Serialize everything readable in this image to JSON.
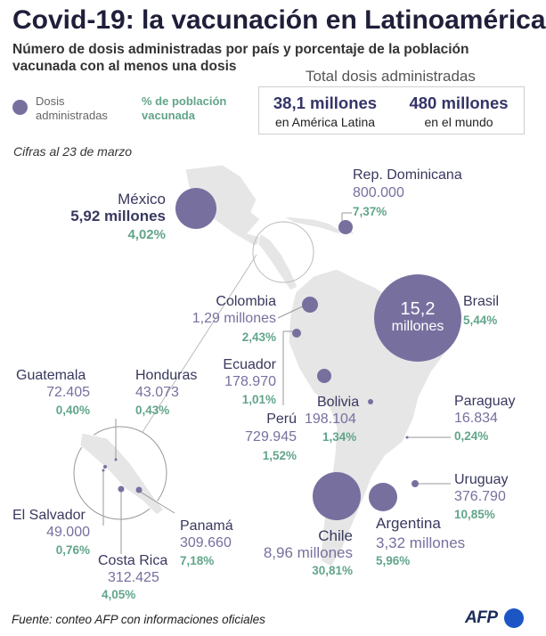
{
  "header": {
    "title": "Covid-19: la vacunación en Latinoamérica",
    "subtitle": "Número de dosis administradas por país y porcentaje de la población vacunada con al menos una dosis"
  },
  "legend": {
    "doses_label": "Dosis\nadministradas",
    "pct_label": "% de población\nvacunada"
  },
  "totals": {
    "title": "Total dosis administradas",
    "latam_value": "38,1 millones",
    "latam_label": "en América Latina",
    "world_value": "480 millones",
    "world_label": "en el mundo"
  },
  "date_note": "Cifras al 23 de marzo",
  "countries": {
    "mexico": {
      "name": "México",
      "doses": "5,92 millones",
      "pct": "4,02%",
      "dose_value": 5920000,
      "pct_value": 4.02
    },
    "rep_dominicana": {
      "name": "Rep. Dominicana",
      "doses": "800.000",
      "pct": "7,37%",
      "dose_value": 800000,
      "pct_value": 7.37
    },
    "colombia": {
      "name": "Colombia",
      "doses": "1,29 millones",
      "pct": "2,43%",
      "dose_value": 1290000,
      "pct_value": 2.43
    },
    "brasil": {
      "name": "Brasil",
      "doses_number": "15,2",
      "doses_unit": "millones",
      "pct": "5,44%",
      "dose_value": 15200000,
      "pct_value": 5.44
    },
    "ecuador": {
      "name": "Ecuador",
      "doses": "178.970",
      "pct": "1,01%",
      "dose_value": 178970,
      "pct_value": 1.01
    },
    "guatemala": {
      "name": "Guatemala",
      "doses": "72.405",
      "pct": "0,40%",
      "dose_value": 72405,
      "pct_value": 0.4
    },
    "honduras": {
      "name": "Honduras",
      "doses": "43.073",
      "pct": "0,43%",
      "dose_value": 43073,
      "pct_value": 0.43
    },
    "bolivia": {
      "name": "Bolivia",
      "doses": "198.104",
      "pct": "1,34%",
      "dose_value": 198104,
      "pct_value": 1.34
    },
    "paraguay": {
      "name": "Paraguay",
      "doses": "16.834",
      "pct": "0,24%",
      "dose_value": 16834,
      "pct_value": 0.24
    },
    "peru": {
      "name": "Perú",
      "doses": "729.945",
      "pct": "1,52%",
      "dose_value": 729945,
      "pct_value": 1.52
    },
    "uruguay": {
      "name": "Uruguay",
      "doses": "376.790",
      "pct": "10,85%",
      "dose_value": 376790,
      "pct_value": 10.85
    },
    "el_salvador": {
      "name": "El Salvador",
      "doses": "49.000",
      "pct": "0,76%",
      "dose_value": 49000,
      "pct_value": 0.76
    },
    "chile": {
      "name": "Chile",
      "doses": "8,96 millones",
      "pct": "30,81%",
      "dose_value": 8960000,
      "pct_value": 30.81
    },
    "argentina": {
      "name": "Argentina",
      "doses": "3,32 millones",
      "pct": "5,96%",
      "dose_value": 3320000,
      "pct_value": 5.96
    },
    "panama": {
      "name": "Panamá",
      "doses": "309.660",
      "pct": "7,18%",
      "dose_value": 309660,
      "pct_value": 7.18
    },
    "costa_rica": {
      "name": "Costa Rica",
      "doses": "312.425",
      "pct": "4,05%",
      "dose_value": 312425,
      "pct_value": 4.05
    }
  },
  "footer": {
    "source": "Fuente: conteo AFP con informaciones oficiales",
    "logo_text": "AFP"
  },
  "colors": {
    "bubble": "#77709f",
    "percent": "#62a58a",
    "land": "#e6e6e6",
    "title": "#1f1f3a"
  }
}
